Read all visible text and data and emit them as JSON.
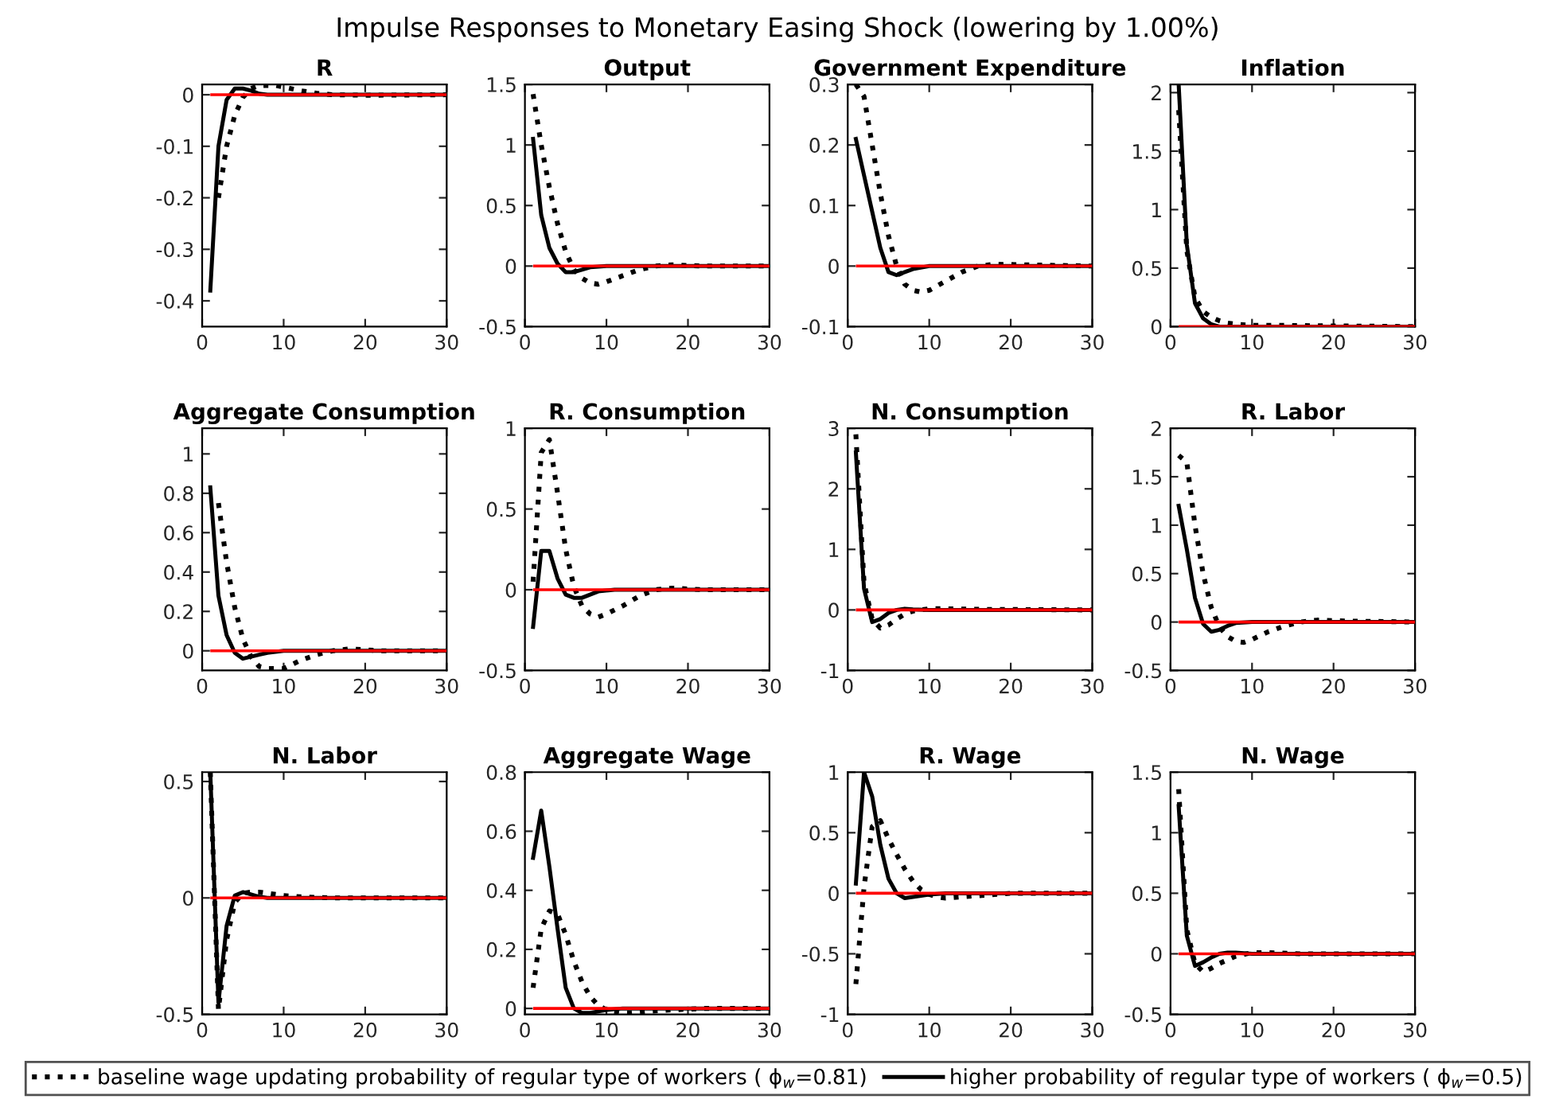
{
  "chart_data": [
    {
      "type": "line",
      "title": "R",
      "annotations": [
        "Impulse Responses to Monetary Easing Shock (lowering by 1.00%)"
      ],
      "legend": "bottom",
      "xlim": [
        0,
        30
      ],
      "xticks": [
        0,
        10,
        20,
        30
      ],
      "ylim": [
        -0.45,
        0.02
      ],
      "yticks": [
        -0.4,
        -0.3,
        -0.2,
        -0.1,
        0
      ],
      "ref_lines": [
        {
          "axis": "y",
          "value": 0,
          "color": "#ff0000"
        }
      ],
      "series": [
        {
          "name": "baseline wage updating probability of regular type of workers ( ϕ$_{w}$=0.81)",
          "color": "#000000",
          "line_style": "dotted",
          "x": [
            2,
            3,
            4,
            5,
            6,
            7,
            8,
            9,
            10,
            12,
            14,
            16,
            20,
            30
          ],
          "values": [
            -0.2,
            -0.1,
            -0.04,
            -0.005,
            0.012,
            0.018,
            0.018,
            0.018,
            0.015,
            0.008,
            0.003,
            0,
            -0.001,
            0
          ]
        },
        {
          "name": "higher probability of regular type of workers ( ϕ$_{w}$=0.5)",
          "color": "#000000",
          "line_style": "solid",
          "x": [
            1,
            2,
            3,
            4,
            5,
            6,
            7,
            8,
            30
          ],
          "values": [
            -0.38,
            -0.1,
            -0.01,
            0.012,
            0.012,
            0.008,
            0.002,
            0,
            0
          ]
        }
      ]
    },
    {
      "type": "line",
      "title": "Output",
      "xlim": [
        0,
        30
      ],
      "xticks": [
        0,
        10,
        20,
        30
      ],
      "ylim": [
        -0.5,
        1.5
      ],
      "yticks": [
        -0.5,
        0,
        0.5,
        1,
        1.5
      ],
      "ref_lines": [
        {
          "axis": "y",
          "value": 0,
          "color": "#ff0000"
        }
      ],
      "series": [
        {
          "color": "#000000",
          "line_style": "dotted",
          "x": [
            1,
            2,
            3,
            4,
            5,
            6,
            7,
            8,
            9,
            10,
            12,
            14,
            16,
            18,
            22,
            30
          ],
          "values": [
            1.42,
            1.0,
            0.65,
            0.35,
            0.12,
            -0.03,
            -0.1,
            -0.14,
            -0.15,
            -0.13,
            -0.08,
            -0.03,
            0,
            0.01,
            0,
            0
          ]
        },
        {
          "color": "#000000",
          "line_style": "solid",
          "x": [
            1,
            2,
            3,
            4,
            5,
            6,
            7,
            8,
            10,
            30
          ],
          "values": [
            1.05,
            0.42,
            0.15,
            0.02,
            -0.05,
            -0.05,
            -0.03,
            -0.01,
            0,
            0
          ]
        }
      ]
    },
    {
      "type": "line",
      "title": "Government Expenditure",
      "xlim": [
        0,
        30
      ],
      "xticks": [
        0,
        10,
        20,
        30
      ],
      "ylim": [
        -0.1,
        0.3
      ],
      "yticks": [
        -0.1,
        0,
        0.1,
        0.2,
        0.3
      ],
      "ref_lines": [
        {
          "axis": "y",
          "value": 0,
          "color": "#ff0000"
        }
      ],
      "series": [
        {
          "color": "#000000",
          "line_style": "dotted",
          "x": [
            1,
            2,
            3,
            4,
            5,
            6,
            7,
            8,
            9,
            10,
            12,
            14,
            16,
            18,
            22,
            30
          ],
          "values": [
            0.3,
            0.28,
            0.2,
            0.12,
            0.05,
            0,
            -0.03,
            -0.04,
            -0.043,
            -0.04,
            -0.025,
            -0.01,
            0,
            0.003,
            0.002,
            0
          ]
        },
        {
          "color": "#000000",
          "line_style": "solid",
          "x": [
            1,
            2,
            3,
            4,
            5,
            6,
            7,
            8,
            10,
            30
          ],
          "values": [
            0.21,
            0.15,
            0.09,
            0.03,
            -0.01,
            -0.015,
            -0.01,
            -0.005,
            0,
            0
          ]
        }
      ]
    },
    {
      "type": "line",
      "title": "Inflation",
      "xlim": [
        0,
        30
      ],
      "xticks": [
        0,
        10,
        20,
        30
      ],
      "ylim": [
        0,
        2.07
      ],
      "yticks": [
        0,
        0.5,
        1,
        1.5,
        2
      ],
      "ref_lines": [
        {
          "axis": "y",
          "value": 0,
          "color": "#ff0000"
        }
      ],
      "series": [
        {
          "color": "#000000",
          "line_style": "dotted",
          "x": [
            1,
            2,
            3,
            4,
            5,
            6,
            7,
            8,
            10,
            14,
            30
          ],
          "values": [
            1.85,
            0.65,
            0.25,
            0.13,
            0.08,
            0.05,
            0.03,
            0.02,
            0.01,
            0.01,
            0
          ]
        },
        {
          "color": "#000000",
          "line_style": "solid",
          "x": [
            1,
            2,
            3,
            4,
            5,
            6,
            30
          ],
          "values": [
            2.07,
            0.7,
            0.2,
            0.07,
            0.02,
            0,
            0
          ]
        }
      ]
    },
    {
      "type": "line",
      "title": "Aggregate Consumption",
      "xlim": [
        0,
        30
      ],
      "xticks": [
        0,
        10,
        20,
        30
      ],
      "ylim": [
        -0.1,
        1.13
      ],
      "yticks": [
        0,
        0.2,
        0.4,
        0.6,
        0.8,
        1
      ],
      "ref_lines": [
        {
          "axis": "y",
          "value": 0,
          "color": "#ff0000"
        }
      ],
      "series": [
        {
          "color": "#000000",
          "line_style": "dotted",
          "x": [
            2,
            3,
            4,
            5,
            6,
            7,
            8,
            9,
            10,
            12,
            14,
            16,
            18,
            22,
            30
          ],
          "values": [
            0.75,
            0.45,
            0.22,
            0.06,
            -0.03,
            -0.08,
            -0.09,
            -0.09,
            -0.09,
            -0.05,
            -0.02,
            0,
            0.01,
            0,
            0
          ]
        },
        {
          "color": "#000000",
          "line_style": "solid",
          "x": [
            1,
            2,
            3,
            4,
            5,
            6,
            7,
            8,
            10,
            30
          ],
          "values": [
            0.83,
            0.28,
            0.08,
            -0.01,
            -0.04,
            -0.03,
            -0.02,
            -0.01,
            0,
            0
          ]
        }
      ]
    },
    {
      "type": "line",
      "title": "R. Consumption",
      "xlim": [
        0,
        30
      ],
      "xticks": [
        0,
        10,
        20,
        30
      ],
      "ylim": [
        -0.5,
        1
      ],
      "yticks": [
        -0.5,
        0,
        0.5,
        1
      ],
      "ref_lines": [
        {
          "axis": "y",
          "value": 0,
          "color": "#ff0000"
        }
      ],
      "series": [
        {
          "color": "#000000",
          "line_style": "dotted",
          "x": [
            1,
            2,
            3,
            4,
            5,
            6,
            7,
            8,
            9,
            10,
            12,
            14,
            16,
            18,
            22,
            30
          ],
          "values": [
            0.05,
            0.85,
            0.93,
            0.6,
            0.25,
            0.02,
            -0.1,
            -0.15,
            -0.17,
            -0.15,
            -0.1,
            -0.04,
            0,
            0.01,
            0,
            0
          ]
        },
        {
          "color": "#000000",
          "line_style": "solid",
          "x": [
            1,
            2,
            3,
            4,
            5,
            6,
            7,
            8,
            9,
            11,
            30
          ],
          "values": [
            -0.23,
            0.24,
            0.24,
            0.07,
            -0.03,
            -0.05,
            -0.05,
            -0.03,
            -0.01,
            0,
            0
          ]
        }
      ]
    },
    {
      "type": "line",
      "title": "N. Consumption",
      "xlim": [
        0,
        30
      ],
      "xticks": [
        0,
        10,
        20,
        30
      ],
      "ylim": [
        -1,
        3
      ],
      "yticks": [
        -1,
        0,
        1,
        2,
        3
      ],
      "ref_lines": [
        {
          "axis": "y",
          "value": 0,
          "color": "#ff0000"
        }
      ],
      "series": [
        {
          "color": "#000000",
          "line_style": "dotted",
          "x": [
            1,
            2,
            3,
            4,
            5,
            6,
            7,
            8,
            10,
            12,
            16,
            30
          ],
          "values": [
            2.9,
            0.45,
            -0.15,
            -0.3,
            -0.25,
            -0.15,
            -0.07,
            -0.02,
            0.02,
            0.02,
            0.01,
            0
          ]
        },
        {
          "color": "#000000",
          "line_style": "solid",
          "x": [
            1,
            2,
            3,
            4,
            5,
            6,
            7,
            8,
            10,
            30
          ],
          "values": [
            2.6,
            0.35,
            -0.2,
            -0.15,
            -0.05,
            0,
            0.02,
            0.01,
            0,
            0
          ]
        }
      ]
    },
    {
      "type": "line",
      "title": "R. Labor",
      "xlim": [
        0,
        30
      ],
      "xticks": [
        0,
        10,
        20,
        30
      ],
      "ylim": [
        -0.5,
        2
      ],
      "yticks": [
        -0.5,
        0,
        0.5,
        1,
        1.5,
        2
      ],
      "ref_lines": [
        {
          "axis": "y",
          "value": 0,
          "color": "#ff0000"
        }
      ],
      "series": [
        {
          "color": "#000000",
          "line_style": "dotted",
          "x": [
            1,
            2,
            3,
            4,
            5,
            6,
            7,
            8,
            9,
            10,
            12,
            14,
            16,
            18,
            22,
            30
          ],
          "values": [
            1.72,
            1.65,
            1.0,
            0.5,
            0.15,
            -0.05,
            -0.15,
            -0.2,
            -0.21,
            -0.18,
            -0.1,
            -0.04,
            0,
            0.02,
            0.01,
            0
          ]
        },
        {
          "color": "#000000",
          "line_style": "solid",
          "x": [
            1,
            2,
            3,
            4,
            5,
            6,
            7,
            8,
            10,
            30
          ],
          "values": [
            1.2,
            0.75,
            0.25,
            -0.02,
            -0.1,
            -0.08,
            -0.04,
            -0.01,
            0,
            0
          ]
        }
      ]
    },
    {
      "type": "line",
      "title": "N. Labor",
      "xlim": [
        0,
        30
      ],
      "xticks": [
        0,
        10,
        20,
        30
      ],
      "ylim": [
        -0.5,
        0.54
      ],
      "yticks": [
        -0.5,
        0,
        0.5
      ],
      "ref_lines": [
        {
          "axis": "y",
          "value": 0,
          "color": "#ff0000"
        }
      ],
      "series": [
        {
          "color": "#000000",
          "line_style": "dotted",
          "x": [
            1,
            2,
            3,
            4,
            5,
            6,
            7,
            8,
            10,
            12,
            16,
            30
          ],
          "values": [
            0.54,
            -0.48,
            -0.18,
            -0.02,
            0.02,
            0.025,
            0.025,
            0.02,
            0.01,
            0.005,
            0,
            0
          ]
        },
        {
          "color": "#000000",
          "line_style": "solid",
          "x": [
            1,
            2,
            3,
            4,
            5,
            6,
            7,
            8,
            30
          ],
          "values": [
            0.54,
            -0.45,
            -0.12,
            0.01,
            0.025,
            0.015,
            0.005,
            0,
            0
          ]
        }
      ]
    },
    {
      "type": "line",
      "title": "Aggregate Wage",
      "xlim": [
        0,
        30
      ],
      "xticks": [
        0,
        10,
        20,
        30
      ],
      "ylim": [
        -0.02,
        0.8
      ],
      "yticks": [
        0,
        0.2,
        0.4,
        0.6,
        0.8
      ],
      "ref_lines": [
        {
          "axis": "y",
          "value": 0,
          "color": "#ff0000"
        }
      ],
      "series": [
        {
          "color": "#000000",
          "line_style": "dotted",
          "x": [
            1,
            2,
            3,
            4,
            5,
            6,
            7,
            8,
            9,
            10,
            11,
            12,
            13,
            15,
            18,
            22,
            30
          ],
          "values": [
            0.07,
            0.27,
            0.33,
            0.32,
            0.25,
            0.16,
            0.09,
            0.04,
            0.01,
            -0.005,
            -0.01,
            -0.015,
            -0.015,
            -0.01,
            -0.005,
            0,
            0
          ]
        },
        {
          "color": "#000000",
          "line_style": "solid",
          "x": [
            1,
            2,
            3,
            4,
            5,
            6,
            7,
            8,
            9,
            10,
            12,
            30
          ],
          "values": [
            0.51,
            0.67,
            0.48,
            0.27,
            0.07,
            0,
            -0.015,
            -0.015,
            -0.01,
            -0.005,
            0,
            0
          ]
        }
      ]
    },
    {
      "type": "line",
      "title": "R. Wage",
      "xlim": [
        0,
        30
      ],
      "xticks": [
        0,
        10,
        20,
        30
      ],
      "ylim": [
        -1,
        1
      ],
      "yticks": [
        -1,
        -0.5,
        0,
        0.5,
        1
      ],
      "ref_lines": [
        {
          "axis": "y",
          "value": 0,
          "color": "#ff0000"
        }
      ],
      "series": [
        {
          "color": "#000000",
          "line_style": "dotted",
          "x": [
            1,
            2,
            3,
            4,
            5,
            6,
            7,
            8,
            9,
            10,
            11,
            12,
            14,
            16,
            20,
            30
          ],
          "values": [
            -0.75,
            0.05,
            0.55,
            0.6,
            0.45,
            0.32,
            0.2,
            0.1,
            0.03,
            -0.01,
            -0.03,
            -0.04,
            -0.03,
            -0.02,
            0,
            0
          ]
        },
        {
          "color": "#000000",
          "line_style": "solid",
          "x": [
            1,
            2,
            3,
            4,
            5,
            6,
            7,
            8,
            9,
            10,
            12,
            30
          ],
          "values": [
            0.08,
            1.0,
            0.8,
            0.4,
            0.12,
            0,
            -0.04,
            -0.03,
            -0.02,
            -0.01,
            0,
            0
          ]
        }
      ]
    },
    {
      "type": "line",
      "title": "N. Wage",
      "xlim": [
        0,
        30
      ],
      "xticks": [
        0,
        10,
        20,
        30
      ],
      "ylim": [
        -0.5,
        1.5
      ],
      "yticks": [
        -0.5,
        0,
        0.5,
        1,
        1.5
      ],
      "ref_lines": [
        {
          "axis": "y",
          "value": 0,
          "color": "#ff0000"
        }
      ],
      "series": [
        {
          "color": "#000000",
          "line_style": "dotted",
          "x": [
            1,
            2,
            3,
            4,
            5,
            6,
            7,
            8,
            10,
            12,
            16,
            30
          ],
          "values": [
            1.36,
            0.2,
            -0.08,
            -0.15,
            -0.12,
            -0.08,
            -0.05,
            -0.02,
            0.01,
            0.01,
            0,
            0
          ]
        },
        {
          "color": "#000000",
          "line_style": "solid",
          "x": [
            1,
            2,
            3,
            4,
            5,
            6,
            7,
            8,
            10,
            30
          ],
          "values": [
            1.22,
            0.15,
            -0.1,
            -0.07,
            -0.03,
            0,
            0.01,
            0.01,
            0,
            0
          ]
        }
      ]
    }
  ]
}
